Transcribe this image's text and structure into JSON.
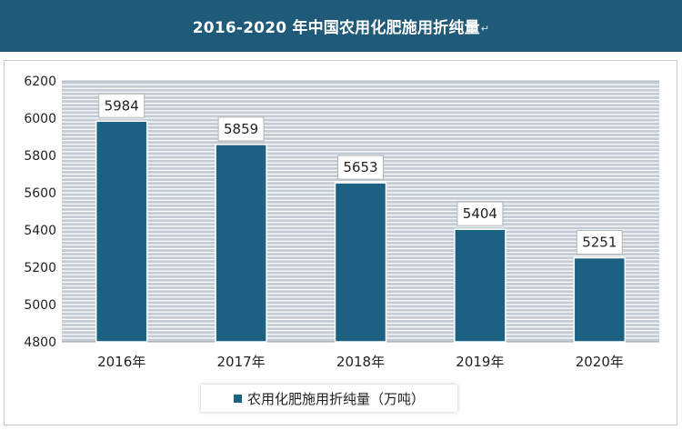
{
  "header": {
    "title": "2016-2020 年中国农用化肥施用折纯量",
    "title_mark": "↵"
  },
  "colors": {
    "header_bg": "#1f5a78",
    "bar": "#1b6282",
    "plot_bg": "#c3ccd4",
    "grid": "#ffffff"
  },
  "chart_data": {
    "type": "bar",
    "title": "2016-2020 年中国农用化肥施用折纯量",
    "categories": [
      "2016年",
      "2017年",
      "2018年",
      "2019年",
      "2020年"
    ],
    "series": [
      {
        "name": "农用化肥施用折纯量（万吨）",
        "values": [
          5984,
          5859,
          5653,
          5404,
          5251
        ]
      }
    ],
    "ylim": [
      4800,
      6200
    ],
    "yticks": [
      4800,
      5000,
      5200,
      5400,
      5600,
      5800,
      6000,
      6200
    ],
    "xlabel": "",
    "ylabel": "",
    "grid": true,
    "legend_position": "bottom"
  }
}
